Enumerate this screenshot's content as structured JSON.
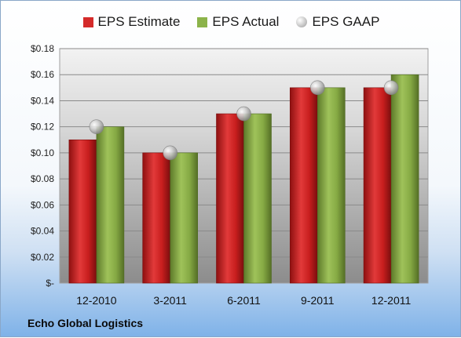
{
  "chart_data": {
    "type": "bar",
    "categories": [
      "12-2010",
      "3-2011",
      "6-2011",
      "9-2011",
      "12-2011"
    ],
    "series": [
      {
        "name": "EPS Estimate",
        "type": "bar",
        "color": "#d42a2a",
        "values": [
          0.11,
          0.1,
          0.13,
          0.15,
          0.15
        ]
      },
      {
        "name": "EPS Actual",
        "type": "bar",
        "color": "#8cb34a",
        "values": [
          0.12,
          0.1,
          0.13,
          0.15,
          0.16
        ]
      },
      {
        "name": "EPS GAAP",
        "type": "marker",
        "color": "#bfbfbf",
        "values": [
          0.12,
          0.1,
          0.13,
          0.15,
          0.15
        ]
      }
    ],
    "y_ticks": [
      "$-",
      "$0.02",
      "$0.04",
      "$0.06",
      "$0.08",
      "$0.10",
      "$0.12",
      "$0.14",
      "$0.16",
      "$0.18"
    ],
    "ylim": [
      0,
      0.18
    ],
    "grid": true,
    "legend_position": "top"
  },
  "footer": {
    "company": "Echo Global Logistics"
  }
}
